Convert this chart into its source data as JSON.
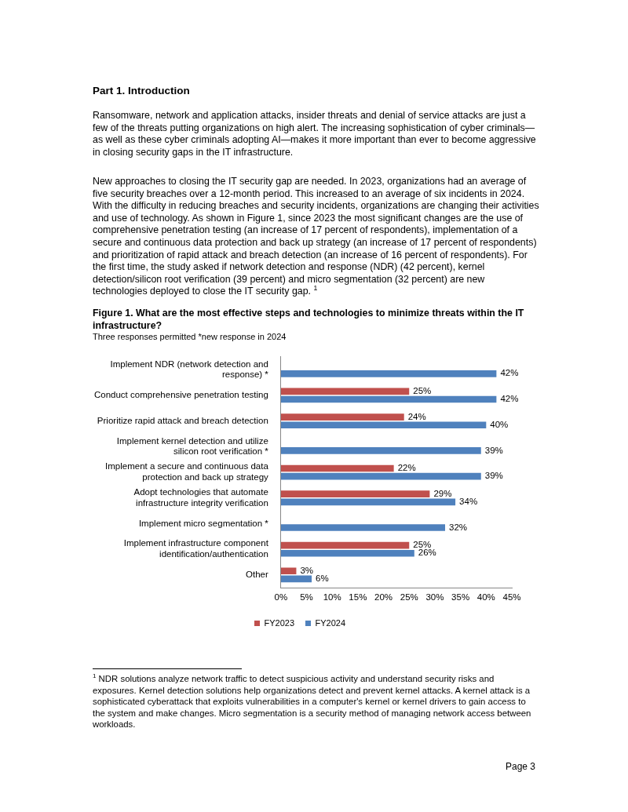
{
  "chart_data": {
    "type": "bar",
    "orientation": "horizontal",
    "title": "Figure 1. What are the most effective steps and technologies to minimize threats within the IT infrastructure?",
    "subtitle": "Three responses permitted *new response in 2024",
    "categories": [
      "Implement NDR (network detection and response) *",
      "Conduct comprehensive penetration testing",
      "Prioritize rapid attack and breach detection",
      "Implement kernel detection and utilize silicon root verification *",
      "Implement a secure and continuous data protection and back up strategy",
      "Adopt technologies that automate infrastructure integrity verification",
      "Implement micro segmentation *",
      "Implement infrastructure component identification/authentication",
      "Other"
    ],
    "series": [
      {
        "name": "FY2023",
        "color": "#c0504d",
        "values": [
          null,
          25,
          24,
          null,
          22,
          29,
          null,
          25,
          3
        ],
        "value_labels": [
          null,
          "25%",
          "24%",
          null,
          "22%",
          "29%",
          null,
          "25%",
          "3%"
        ]
      },
      {
        "name": "FY2024",
        "color": "#4f81bd",
        "values": [
          42,
          42,
          40,
          39,
          39,
          34,
          32,
          26,
          6
        ],
        "value_labels": [
          "42%",
          "42%",
          "40%",
          "39%",
          "39%",
          "34%",
          "32%",
          "26%",
          "6%"
        ]
      }
    ],
    "xlim": [
      0,
      45
    ],
    "xticks": [
      {
        "value": 0,
        "label": "0%"
      },
      {
        "value": 5,
        "label": "5%"
      },
      {
        "value": 10,
        "label": "10%"
      },
      {
        "value": 15,
        "label": "15%"
      },
      {
        "value": 20,
        "label": "20%"
      },
      {
        "value": 25,
        "label": "25%"
      },
      {
        "value": 30,
        "label": "30%"
      },
      {
        "value": 35,
        "label": "35%"
      },
      {
        "value": 40,
        "label": "40%"
      },
      {
        "value": 45,
        "label": "45%"
      }
    ],
    "legend": "bottom",
    "annotations": [
      "Part 1. Introduction",
      "Ransomware, network and application attacks, insider threats and denial of service attacks are just a few of the threats putting organizations on high alert. The increasing sophistication of cyber criminals—as well as these cyber criminals adopting AI—makes it more important than ever to become aggressive in closing security gaps in the IT infrastructure.",
      "New approaches to closing the IT security gap are needed. In 2023, organizations had an average of five security breaches over a 12-month period. This increased to an average of six incidents in 2024. With the difficulty in reducing breaches and security incidents, organizations are changing their activities and use of technology. As shown in Figure 1, since 2023 the most significant changes are the use of comprehensive penetration testing (an increase of 17 percent of respondents), implementation of a secure and continuous data protection and back up strategy (an increase of 17 percent of respondents) and prioritization of rapid attack and breach detection (an increase of 16 percent of respondents). For the first time, the study asked if network detection and response (NDR) (42 percent), kernel detection/silicon root verification (39 percent) and micro segmentation (32 percent) are new technologies deployed to close the IT security gap. $^{1}$",
      "$^{1}$ NDR solutions analyze network traffic to detect suspicious activity and understand security risks and exposures. Kernel detection solutions help organizations detect and prevent kernel attacks. A kernel attack is a sophisticated cyberattack that exploits vulnerabilities in a computer's kernel or kernel drivers to gain access to the system and make changes. Micro segmentation is a security method of managing network access between workloads.",
      "Page 3"
    ]
  }
}
